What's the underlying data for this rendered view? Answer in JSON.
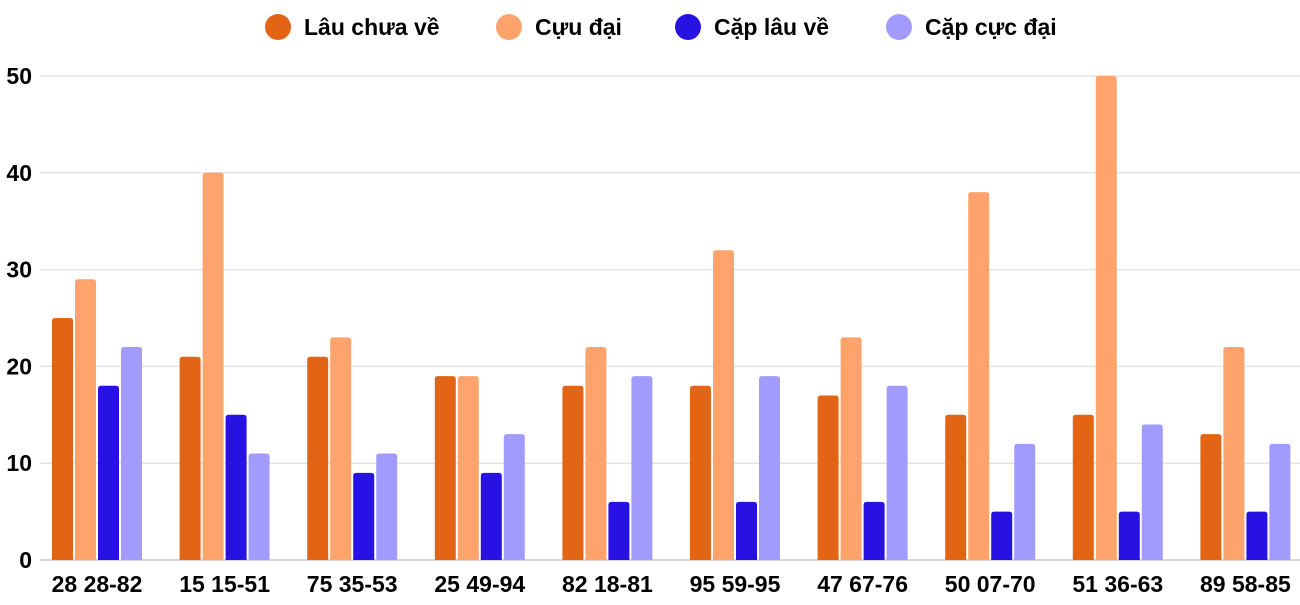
{
  "chart_data": {
    "type": "bar",
    "title": "",
    "xlabel": "",
    "ylabel": "",
    "ylim": [
      0,
      50
    ],
    "yticks": [
      0,
      10,
      20,
      30,
      40,
      50
    ],
    "grid": true,
    "legend_placement": "top",
    "categories": [
      "28 28-82",
      "15 15-51",
      "75 35-53",
      "25 49-94",
      "82 18-81",
      "95 59-95",
      "47 67-76",
      "50 07-70",
      "51 36-63",
      "89 58-85"
    ],
    "series": [
      {
        "name": "Lâu chưa về",
        "color": "#e36414",
        "values": [
          25,
          21,
          21,
          19,
          18,
          18,
          17,
          15,
          15,
          13
        ]
      },
      {
        "name": "Cựu đại",
        "color": "#ffa36c",
        "values": [
          29,
          40,
          23,
          19,
          22,
          32,
          23,
          38,
          50,
          22
        ]
      },
      {
        "name": "Cặp lâu về",
        "color": "#2812e3",
        "values": [
          18,
          15,
          9,
          9,
          6,
          6,
          6,
          5,
          5,
          5
        ]
      },
      {
        "name": "Cặp cực đại",
        "color": "#a29bfe",
        "values": [
          22,
          11,
          11,
          13,
          19,
          19,
          18,
          12,
          14,
          12
        ]
      }
    ]
  }
}
